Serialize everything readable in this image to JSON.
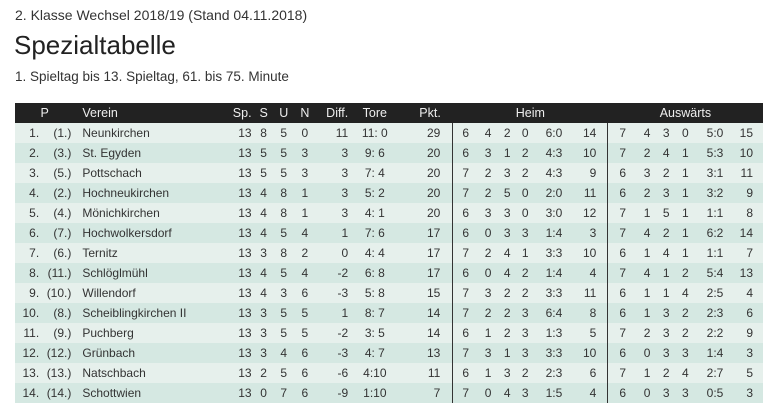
{
  "header": {
    "supertitle": "2. Klasse Wechsel 2018/19 (Stand 04.11.2018)",
    "title": "Spezialtabelle",
    "subtitle": "1. Spieltag bis 13. Spieltag, 61. bis 75. Minute"
  },
  "columns": {
    "p": "P",
    "verein": "Verein",
    "sp": "Sp.",
    "s": "S",
    "u": "U",
    "n": "N",
    "diff": "Diff.",
    "tore": "Tore",
    "pkt": "Pkt.",
    "heim": "Heim",
    "auswaerts": "Auswärts"
  },
  "colors": {
    "header_bg": "#222222",
    "row_odd": "#e6f0ec",
    "row_even": "#d5e8e2"
  },
  "rows": [
    {
      "p": "1.",
      "prev": "(1.)",
      "verein": "Neunkirchen",
      "sp": "13",
      "s": "8",
      "u": "5",
      "n": "0",
      "diff": "11",
      "tore": "11: 0",
      "pkt": "29",
      "heim": [
        "6",
        "4",
        "2",
        "0",
        "6:0",
        "14"
      ],
      "aus": [
        "7",
        "4",
        "3",
        "0",
        "5:0",
        "15"
      ]
    },
    {
      "p": "2.",
      "prev": "(3.)",
      "verein": "St. Egyden",
      "sp": "13",
      "s": "5",
      "u": "5",
      "n": "3",
      "diff": "3",
      "tore": "9: 6",
      "pkt": "20",
      "heim": [
        "6",
        "3",
        "1",
        "2",
        "4:3",
        "10"
      ],
      "aus": [
        "7",
        "2",
        "4",
        "1",
        "5:3",
        "10"
      ]
    },
    {
      "p": "3.",
      "prev": "(5.)",
      "verein": "Pottschach",
      "sp": "13",
      "s": "5",
      "u": "5",
      "n": "3",
      "diff": "3",
      "tore": "7: 4",
      "pkt": "20",
      "heim": [
        "7",
        "2",
        "3",
        "2",
        "4:3",
        "9"
      ],
      "aus": [
        "6",
        "3",
        "2",
        "1",
        "3:1",
        "11"
      ]
    },
    {
      "p": "4.",
      "prev": "(2.)",
      "verein": "Hochneukirchen",
      "sp": "13",
      "s": "4",
      "u": "8",
      "n": "1",
      "diff": "3",
      "tore": "5: 2",
      "pkt": "20",
      "heim": [
        "7",
        "2",
        "5",
        "0",
        "2:0",
        "11"
      ],
      "aus": [
        "6",
        "2",
        "3",
        "1",
        "3:2",
        "9"
      ]
    },
    {
      "p": "5.",
      "prev": "(4.)",
      "verein": "Mönichkirchen",
      "sp": "13",
      "s": "4",
      "u": "8",
      "n": "1",
      "diff": "3",
      "tore": "4: 1",
      "pkt": "20",
      "heim": [
        "6",
        "3",
        "3",
        "0",
        "3:0",
        "12"
      ],
      "aus": [
        "7",
        "1",
        "5",
        "1",
        "1:1",
        "8"
      ]
    },
    {
      "p": "6.",
      "prev": "(7.)",
      "verein": "Hochwolkersdorf",
      "sp": "13",
      "s": "4",
      "u": "5",
      "n": "4",
      "diff": "1",
      "tore": "7: 6",
      "pkt": "17",
      "heim": [
        "6",
        "0",
        "3",
        "3",
        "1:4",
        "3"
      ],
      "aus": [
        "7",
        "4",
        "2",
        "1",
        "6:2",
        "14"
      ]
    },
    {
      "p": "7.",
      "prev": "(6.)",
      "verein": "Ternitz",
      "sp": "13",
      "s": "3",
      "u": "8",
      "n": "2",
      "diff": "0",
      "tore": "4: 4",
      "pkt": "17",
      "heim": [
        "7",
        "2",
        "4",
        "1",
        "3:3",
        "10"
      ],
      "aus": [
        "6",
        "1",
        "4",
        "1",
        "1:1",
        "7"
      ]
    },
    {
      "p": "8.",
      "prev": "(11.)",
      "verein": "Schlöglmühl",
      "sp": "13",
      "s": "4",
      "u": "5",
      "n": "4",
      "diff": "-2",
      "tore": "6: 8",
      "pkt": "17",
      "heim": [
        "6",
        "0",
        "4",
        "2",
        "1:4",
        "4"
      ],
      "aus": [
        "7",
        "4",
        "1",
        "2",
        "5:4",
        "13"
      ]
    },
    {
      "p": "9.",
      "prev": "(10.)",
      "verein": "Willendorf",
      "sp": "13",
      "s": "4",
      "u": "3",
      "n": "6",
      "diff": "-3",
      "tore": "5: 8",
      "pkt": "15",
      "heim": [
        "7",
        "3",
        "2",
        "2",
        "3:3",
        "11"
      ],
      "aus": [
        "6",
        "1",
        "1",
        "4",
        "2:5",
        "4"
      ]
    },
    {
      "p": "10.",
      "prev": "(8.)",
      "verein": "Scheiblingkirchen II",
      "sp": "13",
      "s": "3",
      "u": "5",
      "n": "5",
      "diff": "1",
      "tore": "8: 7",
      "pkt": "14",
      "heim": [
        "7",
        "2",
        "2",
        "3",
        "6:4",
        "8"
      ],
      "aus": [
        "6",
        "1",
        "3",
        "2",
        "2:3",
        "6"
      ]
    },
    {
      "p": "11.",
      "prev": "(9.)",
      "verein": "Puchberg",
      "sp": "13",
      "s": "3",
      "u": "5",
      "n": "5",
      "diff": "-2",
      "tore": "3: 5",
      "pkt": "14",
      "heim": [
        "6",
        "1",
        "2",
        "3",
        "1:3",
        "5"
      ],
      "aus": [
        "7",
        "2",
        "3",
        "2",
        "2:2",
        "9"
      ]
    },
    {
      "p": "12.",
      "prev": "(12.)",
      "verein": "Grünbach",
      "sp": "13",
      "s": "3",
      "u": "4",
      "n": "6",
      "diff": "-3",
      "tore": "4: 7",
      "pkt": "13",
      "heim": [
        "7",
        "3",
        "1",
        "3",
        "3:3",
        "10"
      ],
      "aus": [
        "6",
        "0",
        "3",
        "3",
        "1:4",
        "3"
      ]
    },
    {
      "p": "13.",
      "prev": "(13.)",
      "verein": "Natschbach",
      "sp": "13",
      "s": "2",
      "u": "5",
      "n": "6",
      "diff": "-6",
      "tore": "4:10",
      "pkt": "11",
      "heim": [
        "6",
        "1",
        "3",
        "2",
        "2:3",
        "6"
      ],
      "aus": [
        "7",
        "1",
        "2",
        "4",
        "2:7",
        "5"
      ]
    },
    {
      "p": "14.",
      "prev": "(14.)",
      "verein": "Schottwien",
      "sp": "13",
      "s": "0",
      "u": "7",
      "n": "6",
      "diff": "-9",
      "tore": "1:10",
      "pkt": "7",
      "heim": [
        "7",
        "0",
        "4",
        "3",
        "1:5",
        "4"
      ],
      "aus": [
        "6",
        "0",
        "3",
        "3",
        "0:5",
        "3"
      ]
    }
  ]
}
